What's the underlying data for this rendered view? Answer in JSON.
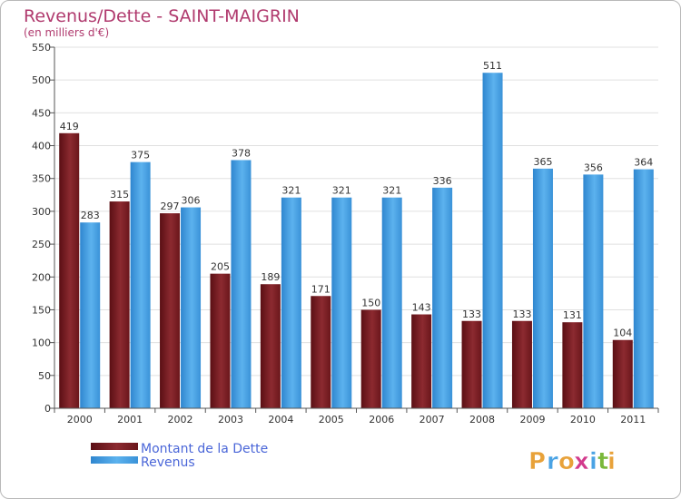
{
  "chart_data": {
    "type": "bar",
    "title": "Revenus/Dette - SAINT-MAIGRIN",
    "subtitle": "(en milliers d'€)",
    "categories": [
      "2000",
      "2001",
      "2002",
      "2003",
      "2004",
      "2005",
      "2006",
      "2007",
      "2008",
      "2009",
      "2010",
      "2011"
    ],
    "series": [
      {
        "name": "Montant de la Dette",
        "values": [
          419,
          315,
          297,
          205,
          189,
          171,
          150,
          143,
          133,
          133,
          131,
          104
        ],
        "color": "#7a1e24"
      },
      {
        "name": "Revenus",
        "values": [
          283,
          375,
          306,
          378,
          321,
          321,
          321,
          336,
          511,
          365,
          356,
          364
        ],
        "color": "#4aa3e4"
      }
    ],
    "yticks": [
      0,
      50,
      100,
      150,
      200,
      250,
      300,
      350,
      400,
      450,
      500,
      550
    ],
    "ylim": [
      0,
      550
    ],
    "grid": true,
    "legend": "bottom-left"
  },
  "logo": {
    "letters": [
      "P",
      "r",
      "o",
      "x",
      "i",
      "t",
      "i"
    ],
    "colors": [
      "#e8a23a",
      "#4aa3e4",
      "#e8a23a",
      "#d23a8c",
      "#4aa3e4",
      "#7ab83a",
      "#e8a23a"
    ]
  }
}
